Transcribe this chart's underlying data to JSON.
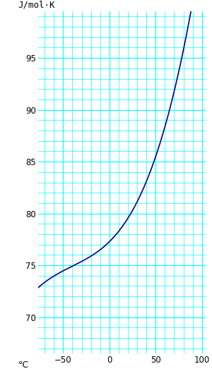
{
  "title": "J/mol·K",
  "xlabel": "°C",
  "xlim": [
    -77,
    104
  ],
  "ylim": [
    66.5,
    99.5
  ],
  "xticks": [
    -50,
    0,
    50,
    100
  ],
  "yticks": [
    70,
    75,
    80,
    85,
    90,
    95
  ],
  "grid_color": "#00ffff",
  "grid_minor_color": "#00ffff",
  "line_color": "#00008b",
  "line_width": 1.2,
  "bg_color": "#ffffff",
  "poly_coeffs": [
    77.281,
    0.08799,
    0.0010791,
    8.8986e-06
  ],
  "T_start": -77,
  "T_end": 100,
  "figsize": [
    3.0,
    5.33
  ],
  "dpi": 100,
  "label_fontsize": 9,
  "tick_fontsize": 8.5
}
